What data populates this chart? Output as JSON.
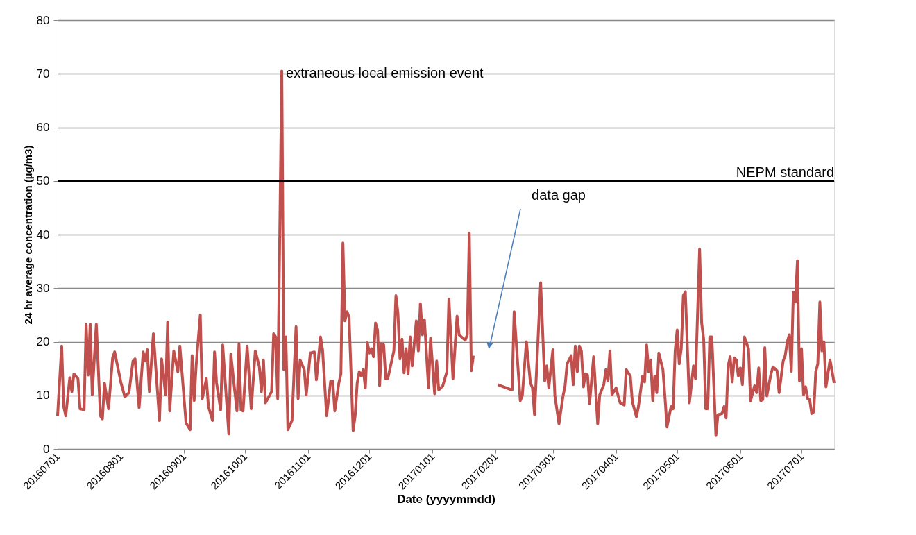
{
  "chart_data": {
    "type": "line",
    "xlabel": "Date (yyyymmdd)",
    "ylabel": "24 hr average concentration  (µg/m3)",
    "xlim": [
      "2016-07-01",
      "2017-07-17"
    ],
    "ylim": [
      0,
      80
    ],
    "yticks": [
      0,
      10,
      20,
      30,
      40,
      50,
      60,
      70,
      80
    ],
    "xticks": [
      {
        "value": "2016-07-01",
        "label": "20160701"
      },
      {
        "value": "2016-08-01",
        "label": "20160801"
      },
      {
        "value": "2016-09-01",
        "label": "20160901"
      },
      {
        "value": "2016-10-01",
        "label": "20161001"
      },
      {
        "value": "2016-11-01",
        "label": "20161101"
      },
      {
        "value": "2016-12-01",
        "label": "20161201"
      },
      {
        "value": "2017-01-01",
        "label": "20170101"
      },
      {
        "value": "2017-02-01",
        "label": "20170201"
      },
      {
        "value": "2017-03-01",
        "label": "20170301"
      },
      {
        "value": "2017-04-01",
        "label": "20170401"
      },
      {
        "value": "2017-05-01",
        "label": "20170501"
      },
      {
        "value": "2017-06-01",
        "label": "20170601"
      },
      {
        "value": "2017-07-01",
        "label": "20170701"
      }
    ],
    "grid": "y",
    "marker": "none",
    "line_style": "solid",
    "ref_lines": [
      {
        "axis": "y",
        "value": 50,
        "label": "NEPM standard",
        "color": "#000000"
      }
    ],
    "annotations": [
      {
        "text": "extraneous local emission event",
        "x": "2016-10-19",
        "y": 70.5
      },
      "data gap"
    ],
    "x": [
      "2016-07-01",
      "2016-07-03",
      "2016-07-04",
      "2016-07-05",
      "2016-07-07",
      "2016-07-08",
      "2016-07-09",
      "2016-07-11",
      "2016-07-12",
      "2016-07-14",
      "2016-07-15",
      "2016-07-16",
      "2016-07-17",
      "2016-07-18",
      "2016-07-20",
      "2016-07-22",
      "2016-07-23",
      "2016-07-24",
      "2016-07-26",
      "2016-07-28",
      "2016-07-29",
      "2016-08-01",
      "2016-08-03",
      "2016-08-05",
      "2016-08-07",
      "2016-08-08",
      "2016-08-10",
      "2016-08-12",
      "2016-08-13",
      "2016-08-14",
      "2016-08-15",
      "2016-08-17",
      "2016-08-20",
      "2016-08-21",
      "2016-08-23",
      "2016-08-24",
      "2016-08-25",
      "2016-08-27",
      "2016-08-29",
      "2016-08-30",
      "2016-09-02",
      "2016-09-04",
      "2016-09-05",
      "2016-09-06",
      "2016-09-07",
      "2016-09-09",
      "2016-09-10",
      "2016-09-12",
      "2016-09-13",
      "2016-09-15",
      "2016-09-16",
      "2016-09-17",
      "2016-09-19",
      "2016-09-20",
      "2016-09-23",
      "2016-09-24",
      "2016-09-26",
      "2016-09-27",
      "2016-09-28",
      "2016-09-29",
      "2016-09-30",
      "2016-10-02",
      "2016-10-04",
      "2016-10-06",
      "2016-10-08",
      "2016-10-09",
      "2016-10-10",
      "2016-10-11",
      "2016-10-14",
      "2016-10-15",
      "2016-10-16",
      "2016-10-17",
      "2016-10-19",
      "2016-10-20",
      "2016-10-21",
      "2016-10-22",
      "2016-10-24",
      "2016-10-26",
      "2016-10-27",
      "2016-10-28",
      "2016-10-30",
      "2016-10-31",
      "2016-11-02",
      "2016-11-04",
      "2016-11-05",
      "2016-11-07",
      "2016-11-08",
      "2016-11-10",
      "2016-11-12",
      "2016-11-13",
      "2016-11-14",
      "2016-11-16",
      "2016-11-17",
      "2016-11-18",
      "2016-11-19",
      "2016-11-20",
      "2016-11-21",
      "2016-11-23",
      "2016-11-24",
      "2016-11-25",
      "2016-11-26",
      "2016-11-27",
      "2016-11-28",
      "2016-11-29",
      "2016-11-30",
      "2016-12-01",
      "2016-12-02",
      "2016-12-03",
      "2016-12-04",
      "2016-12-05",
      "2016-12-06",
      "2016-12-07",
      "2016-12-08",
      "2016-12-09",
      "2016-12-10",
      "2016-12-13",
      "2016-12-14",
      "2016-12-15",
      "2016-12-16",
      "2016-12-17",
      "2016-12-18",
      "2016-12-19",
      "2016-12-20",
      "2016-12-21",
      "2016-12-22",
      "2016-12-24",
      "2016-12-25",
      "2016-12-26",
      "2016-12-27",
      "2016-12-28",
      "2016-12-30",
      "2016-12-31",
      "2017-01-02",
      "2017-01-03",
      "2017-01-04",
      "2017-01-06",
      "2017-01-08",
      "2017-01-09",
      "2017-01-11",
      "2017-01-13",
      "2017-01-14",
      "2017-01-17",
      "2017-01-18",
      "2017-01-19",
      "2017-01-20",
      "2017-01-21",
      "2017-01-27",
      "2017-02-02",
      "2017-02-09",
      "2017-02-10",
      "2017-02-13",
      "2017-02-14",
      "2017-02-16",
      "2017-02-18",
      "2017-02-19",
      "2017-02-20",
      "2017-02-23",
      "2017-02-25",
      "2017-02-26",
      "2017-02-27",
      "2017-03-01",
      "2017-03-02",
      "2017-03-04",
      "2017-03-06",
      "2017-03-07",
      "2017-03-08",
      "2017-03-10",
      "2017-03-11",
      "2017-03-12",
      "2017-03-13",
      "2017-03-14",
      "2017-03-15",
      "2017-03-16",
      "2017-03-17",
      "2017-03-18",
      "2017-03-19",
      "2017-03-21",
      "2017-03-23",
      "2017-03-24",
      "2017-03-26",
      "2017-03-27",
      "2017-03-28",
      "2017-03-29",
      "2017-03-30",
      "2017-04-01",
      "2017-04-03",
      "2017-04-05",
      "2017-04-06",
      "2017-04-08",
      "2017-04-09",
      "2017-04-11",
      "2017-04-12",
      "2017-04-14",
      "2017-04-15",
      "2017-04-16",
      "2017-04-17",
      "2017-04-18",
      "2017-04-19",
      "2017-04-20",
      "2017-04-21",
      "2017-04-22",
      "2017-04-24",
      "2017-04-25",
      "2017-04-26",
      "2017-04-28",
      "2017-04-29",
      "2017-04-30",
      "2017-05-01",
      "2017-05-02",
      "2017-05-03",
      "2017-05-04",
      "2017-05-05",
      "2017-05-07",
      "2017-05-09",
      "2017-05-10",
      "2017-05-12",
      "2017-05-13",
      "2017-05-14",
      "2017-05-15",
      "2017-05-16",
      "2017-05-17",
      "2017-05-18",
      "2017-05-20",
      "2017-05-21",
      "2017-05-23",
      "2017-05-24",
      "2017-05-25",
      "2017-05-26",
      "2017-05-27",
      "2017-05-28",
      "2017-05-29",
      "2017-05-30",
      "2017-05-31",
      "2017-06-01",
      "2017-06-02",
      "2017-06-03",
      "2017-06-05",
      "2017-06-06",
      "2017-06-08",
      "2017-06-09",
      "2017-06-10",
      "2017-06-11",
      "2017-06-12",
      "2017-06-13",
      "2017-06-14",
      "2017-06-16",
      "2017-06-17",
      "2017-06-19",
      "2017-06-20",
      "2017-06-22",
      "2017-06-23",
      "2017-06-24",
      "2017-06-25",
      "2017-06-26",
      "2017-06-27",
      "2017-06-28",
      "2017-06-29",
      "2017-06-30",
      "2017-07-01",
      "2017-07-02",
      "2017-07-03",
      "2017-07-04",
      "2017-07-05",
      "2017-07-06",
      "2017-07-07",
      "2017-07-08",
      "2017-07-09",
      "2017-07-10",
      "2017-07-11",
      "2017-07-12",
      "2017-07-13",
      "2017-07-15",
      "2017-07-17"
    ],
    "series": [
      {
        "color": "#c0504d",
        "values": [
          6.2,
          19.2,
          7.9,
          6.2,
          13.3,
          10.7,
          14.0,
          13.1,
          7.5,
          7.3,
          23.3,
          13.8,
          23.3,
          10.1,
          23.3,
          6.2,
          5.6,
          12.3,
          7.5,
          17.0,
          18.1,
          12.5,
          9.7,
          10.5,
          16.4,
          16.8,
          7.7,
          18.1,
          16.4,
          18.5,
          10.7,
          21.5,
          5.3,
          16.8,
          10.1,
          23.7,
          7.1,
          18.3,
          14.4,
          19.2,
          4.9,
          3.6,
          17.4,
          9.0,
          15.7,
          25.0,
          9.4,
          13.1,
          7.9,
          5.3,
          18.1,
          12.3,
          7.3,
          19.4,
          2.8,
          17.7,
          10.5,
          7.1,
          19.6,
          7.3,
          7.1,
          19.2,
          7.5,
          18.3,
          15.3,
          10.7,
          16.6,
          8.6,
          10.7,
          21.5,
          20.9,
          9.4,
          70.5,
          14.8,
          20.9,
          3.6,
          5.3,
          22.8,
          9.4,
          16.6,
          14.8,
          10.1,
          17.9,
          18.1,
          12.9,
          20.9,
          18.5,
          6.2,
          12.7,
          12.7,
          7.1,
          12.3,
          14.0,
          38.4,
          23.9,
          25.6,
          24.6,
          3.4,
          6.2,
          12.3,
          14.4,
          13.6,
          14.8,
          11.4,
          19.8,
          17.9,
          18.7,
          17.2,
          23.5,
          22.2,
          11.8,
          19.6,
          19.4,
          13.1,
          13.1,
          18.3,
          28.6,
          25.2,
          16.8,
          20.5,
          14.2,
          18.7,
          14.0,
          20.9,
          15.5,
          23.9,
          18.3,
          27.1,
          21.3,
          24.1,
          11.4,
          20.7,
          10.3,
          16.4,
          11.0,
          11.8,
          14.4,
          28.0,
          13.1,
          24.8,
          21.3,
          20.3,
          21.3,
          40.3,
          14.6,
          17.4,
          null,
          12.0,
          11.0,
          25.6,
          9.0,
          9.9,
          20.0,
          12.3,
          11.4,
          6.4,
          31.0,
          12.7,
          15.5,
          11.4,
          18.5,
          9.9,
          4.7,
          9.9,
          11.8,
          15.9,
          17.4,
          12.0,
          19.2,
          14.4,
          19.2,
          18.3,
          11.6,
          14.0,
          13.8,
          8.4,
          17.2,
          4.7,
          10.1,
          12.0,
          14.8,
          12.7,
          18.3,
          10.1,
          11.4,
          8.6,
          8.2,
          14.8,
          13.6,
          8.8,
          6.0,
          7.9,
          13.6,
          12.5,
          19.4,
          14.4,
          16.6,
          9.0,
          13.6,
          10.5,
          17.9,
          14.8,
          9.7,
          4.1,
          7.9,
          7.5,
          18.3,
          22.2,
          15.9,
          18.7,
          28.6,
          29.3,
          8.6,
          15.5,
          13.1,
          37.3,
          23.5,
          20.5,
          7.5,
          7.5,
          20.9,
          20.9,
          2.5,
          6.4,
          6.6,
          7.9,
          5.8,
          15.5,
          17.2,
          12.5,
          17.0,
          16.6,
          13.6,
          15.1,
          12.0,
          20.9,
          18.7,
          9.0,
          11.8,
          10.5,
          15.1,
          9.0,
          9.2,
          18.9,
          9.9,
          14.0,
          15.3,
          14.6,
          10.5,
          16.4,
          17.4,
          20.0,
          21.3,
          14.5,
          29.3,
          27.4,
          35.1,
          12.7,
          18.7,
          10.1,
          11.6,
          9.4,
          9.2,
          6.6,
          6.9,
          14.4,
          15.9,
          27.4,
          18.3,
          20.0,
          11.6,
          16.6,
          12.3
        ]
      }
    ]
  }
}
